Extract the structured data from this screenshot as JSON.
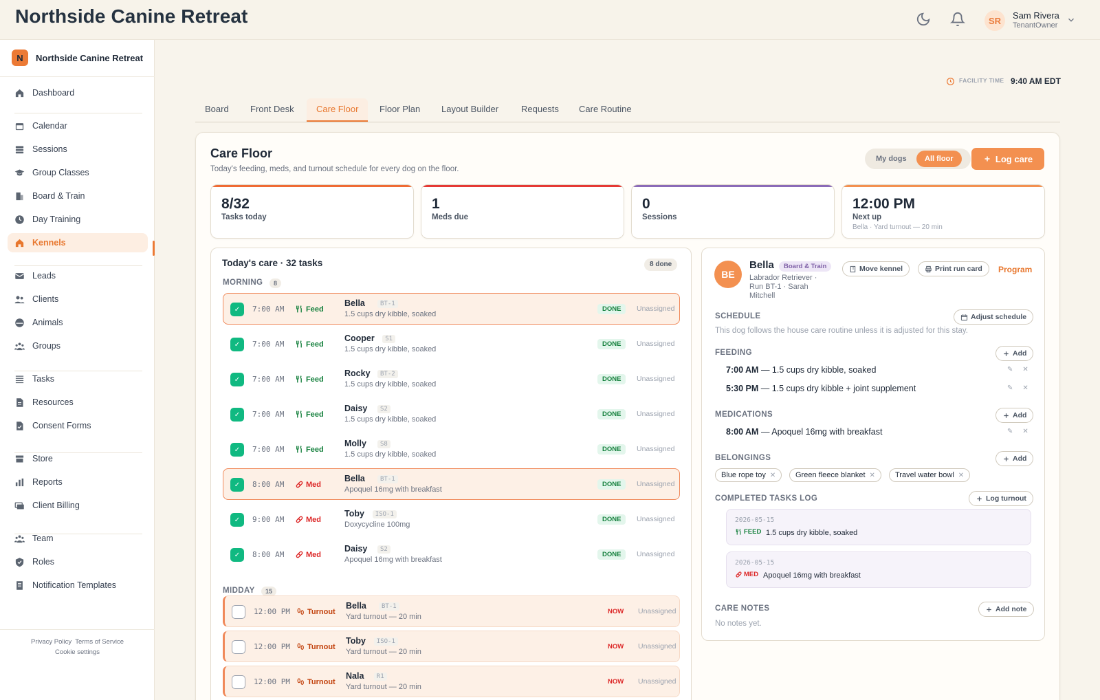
{
  "app": {
    "title": "Northside Canine Retreat",
    "user": {
      "initials": "SR",
      "name": "Sam Rivera",
      "role": "TenantOwner"
    }
  },
  "sidebar": {
    "org_initial": "N",
    "org_name": "Northside Canine Retreat",
    "items": [
      {
        "label": "Dashboard",
        "icon": "home-icon"
      },
      {
        "label": "Calendar",
        "icon": "calendar-icon"
      },
      {
        "label": "Sessions",
        "icon": "sessions-icon"
      },
      {
        "label": "Group Classes",
        "icon": "graduation-icon"
      },
      {
        "label": "Board & Train",
        "icon": "building-icon"
      },
      {
        "label": "Day Training",
        "icon": "clock-icon"
      },
      {
        "label": "Kennels",
        "icon": "home-icon",
        "active": true
      },
      {
        "label": "Leads",
        "icon": "mail-icon"
      },
      {
        "label": "Clients",
        "icon": "users-icon"
      },
      {
        "label": "Animals",
        "icon": "paw-icon"
      },
      {
        "label": "Groups",
        "icon": "group-icon"
      },
      {
        "label": "Tasks",
        "icon": "list-icon"
      },
      {
        "label": "Resources",
        "icon": "file-icon"
      },
      {
        "label": "Consent Forms",
        "icon": "file-check-icon"
      },
      {
        "label": "Store",
        "icon": "store-icon"
      },
      {
        "label": "Reports",
        "icon": "bar-chart-icon"
      },
      {
        "label": "Client Billing",
        "icon": "billing-icon"
      },
      {
        "label": "Team",
        "icon": "team-icon"
      },
      {
        "label": "Roles",
        "icon": "shield-icon"
      },
      {
        "label": "Notification Templates",
        "icon": "template-icon"
      }
    ],
    "footer": {
      "privacy": "Privacy Policy",
      "terms": "Terms of Service",
      "cookies": "Cookie settings"
    }
  },
  "facility": {
    "label": "FACILITY TIME",
    "time": "9:40 AM EDT"
  },
  "tabs": [
    "Board",
    "Front Desk",
    "Care Floor",
    "Floor Plan",
    "Layout Builder",
    "Requests",
    "Care Routine"
  ],
  "active_tab": "Care Floor",
  "care_floor": {
    "title": "Care Floor",
    "subtitle": "Today's feeding, meds, and turnout schedule for every dog on the floor.",
    "toggle": {
      "mine": "My dogs",
      "all": "All floor",
      "selected": "all"
    },
    "log_care": "Log care",
    "stats": [
      {
        "value": "8/32",
        "label": "Tasks today",
        "sub": "",
        "color": "#ef6b34"
      },
      {
        "value": "1",
        "label": "Meds due",
        "sub": "",
        "color": "#e53935"
      },
      {
        "value": "0",
        "label": "Sessions",
        "sub": "",
        "color": "#8b6bb8"
      },
      {
        "value": "12:00 PM",
        "label": "Next up",
        "sub": "Bella · Yard turnout — 20 min",
        "color": "#f39050"
      }
    ]
  },
  "todays_care": {
    "title": "Today's care · 32 tasks",
    "done_badge": "8 done",
    "sections": [
      {
        "label": "MORNING",
        "count": "8"
      },
      {
        "label": "MIDDAY",
        "count": "15"
      }
    ],
    "tasks": [
      {
        "time": "7:00 AM",
        "type": "Feed",
        "name": "Bella",
        "run": "BT-1",
        "desc": "1.5 cups dry kibble, soaked",
        "status": "DONE",
        "assignee": "Unassigned"
      },
      {
        "time": "7:00 AM",
        "type": "Feed",
        "name": "Cooper",
        "run": "S1",
        "desc": "1.5 cups dry kibble, soaked",
        "status": "DONE",
        "assignee": "Unassigned"
      },
      {
        "time": "7:00 AM",
        "type": "Feed",
        "name": "Rocky",
        "run": "BT-2",
        "desc": "1.5 cups dry kibble, soaked",
        "status": "DONE",
        "assignee": "Unassigned"
      },
      {
        "time": "7:00 AM",
        "type": "Feed",
        "name": "Daisy",
        "run": "S2",
        "desc": "1.5 cups dry kibble, soaked",
        "status": "DONE",
        "assignee": "Unassigned"
      },
      {
        "time": "7:00 AM",
        "type": "Feed",
        "name": "Molly",
        "run": "S8",
        "desc": "1.5 cups dry kibble, soaked",
        "status": "DONE",
        "assignee": "Unassigned"
      },
      {
        "time": "8:00 AM",
        "type": "Med",
        "name": "Bella",
        "run": "BT-1",
        "desc": "Apoquel 16mg with breakfast",
        "status": "DONE",
        "assignee": "Unassigned"
      },
      {
        "time": "9:00 AM",
        "type": "Med",
        "name": "Toby",
        "run": "ISO-1",
        "desc": "Doxycycline 100mg",
        "status": "DONE",
        "assignee": "Unassigned"
      },
      {
        "time": "8:00 AM",
        "type": "Med",
        "name": "Daisy",
        "run": "S2",
        "desc": "Apoquel 16mg with breakfast",
        "status": "DONE",
        "assignee": "Unassigned"
      },
      {
        "time": "12:00 PM",
        "type": "Turnout",
        "name": "Bella",
        "run": "BT-1",
        "desc": "Yard turnout — 20 min",
        "status": "NOW",
        "assignee": "Unassigned"
      },
      {
        "time": "12:00 PM",
        "type": "Turnout",
        "name": "Toby",
        "run": "ISO-1",
        "desc": "Yard turnout — 20 min",
        "status": "NOW",
        "assignee": "Unassigned"
      },
      {
        "time": "12:00 PM",
        "type": "Turnout",
        "name": "Nala",
        "run": "R1",
        "desc": "Yard turnout — 20 min",
        "status": "NOW",
        "assignee": "Unassigned"
      }
    ]
  },
  "detail": {
    "initials": "BE",
    "name": "Bella",
    "program_badge": "Board & Train",
    "meta": "Labrador Retriever · Run BT-1 · Sarah Mitchell",
    "move_kennel": "Move kennel",
    "print_run_card": "Print run card",
    "program_link": "Program",
    "schedule": {
      "label": "SCHEDULE",
      "button": "Adjust schedule",
      "note": "This dog follows the house care routine unless it is adjusted for this stay."
    },
    "feeding": {
      "label": "FEEDING",
      "add": "Add",
      "items": [
        {
          "time": "7:00 AM",
          "text": "— 1.5 cups dry kibble, soaked"
        },
        {
          "time": "5:30 PM",
          "text": "— 1.5 cups dry kibble + joint supplement"
        }
      ]
    },
    "medications": {
      "label": "MEDICATIONS",
      "add": "Add",
      "items": [
        {
          "time": "8:00 AM",
          "text": "— Apoquel 16mg with breakfast"
        }
      ]
    },
    "belongings": {
      "label": "BELONGINGS",
      "add": "Add",
      "items": [
        "Blue rope toy",
        "Green fleece blanket",
        "Travel water bowl"
      ]
    },
    "log": {
      "label": "COMPLETED TASKS LOG",
      "button": "Log turnout",
      "entries": [
        {
          "date": "2026-05-15",
          "type": "FEED",
          "text": "1.5 cups dry kibble, soaked"
        },
        {
          "date": "2026-05-15",
          "type": "MED",
          "text": "Apoquel 16mg with breakfast"
        }
      ]
    },
    "notes": {
      "label": "CARE NOTES",
      "button": "Add note",
      "empty": "No notes yet."
    }
  },
  "colors": {
    "accent": "#f39050",
    "done_green": "#10b981",
    "med_red": "#dc2626"
  }
}
